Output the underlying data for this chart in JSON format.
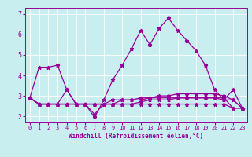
{
  "xlabel": "Windchill (Refroidissement éolien,°C)",
  "background_color": "#c8eef0",
  "line_color": "#990099",
  "xlim": [
    -0.5,
    23.5
  ],
  "ylim": [
    1.7,
    7.3
  ],
  "yticks": [
    2,
    3,
    4,
    5,
    6,
    7
  ],
  "xticks": [
    0,
    1,
    2,
    3,
    4,
    5,
    6,
    7,
    8,
    9,
    10,
    11,
    12,
    13,
    14,
    15,
    16,
    17,
    18,
    19,
    20,
    21,
    22,
    23
  ],
  "series": {
    "line1": [
      2.9,
      4.4,
      4.4,
      4.5,
      3.3,
      2.6,
      2.6,
      1.95,
      2.8,
      3.8,
      4.5,
      5.3,
      6.2,
      5.5,
      6.3,
      6.8,
      6.2,
      5.7,
      5.2,
      4.5,
      3.3,
      2.8,
      3.3,
      2.4
    ],
    "line2": [
      2.9,
      2.6,
      2.6,
      2.6,
      3.3,
      2.6,
      2.6,
      2.6,
      2.6,
      2.8,
      2.8,
      2.8,
      2.8,
      2.9,
      2.9,
      2.9,
      2.9,
      2.9,
      2.9,
      2.9,
      2.9,
      2.8,
      2.8,
      2.4
    ],
    "line3": [
      2.9,
      2.6,
      2.6,
      2.6,
      2.6,
      2.6,
      2.6,
      2.6,
      2.6,
      2.6,
      2.6,
      2.6,
      2.6,
      2.6,
      2.6,
      2.6,
      2.6,
      2.6,
      2.6,
      2.6,
      2.6,
      2.6,
      2.4,
      2.4
    ],
    "line4": [
      2.9,
      2.6,
      2.6,
      2.6,
      2.6,
      2.6,
      2.6,
      2.1,
      2.6,
      2.6,
      2.6,
      2.6,
      2.7,
      2.8,
      2.8,
      2.8,
      2.9,
      2.9,
      2.9,
      2.9,
      2.9,
      2.9,
      2.4,
      2.4
    ],
    "line5": [
      2.9,
      2.6,
      2.6,
      2.6,
      2.6,
      2.6,
      2.6,
      2.6,
      2.6,
      2.6,
      2.8,
      2.8,
      2.9,
      2.9,
      3.0,
      3.0,
      3.1,
      3.1,
      3.1,
      3.1,
      3.1,
      3.0,
      2.8,
      2.4
    ]
  }
}
